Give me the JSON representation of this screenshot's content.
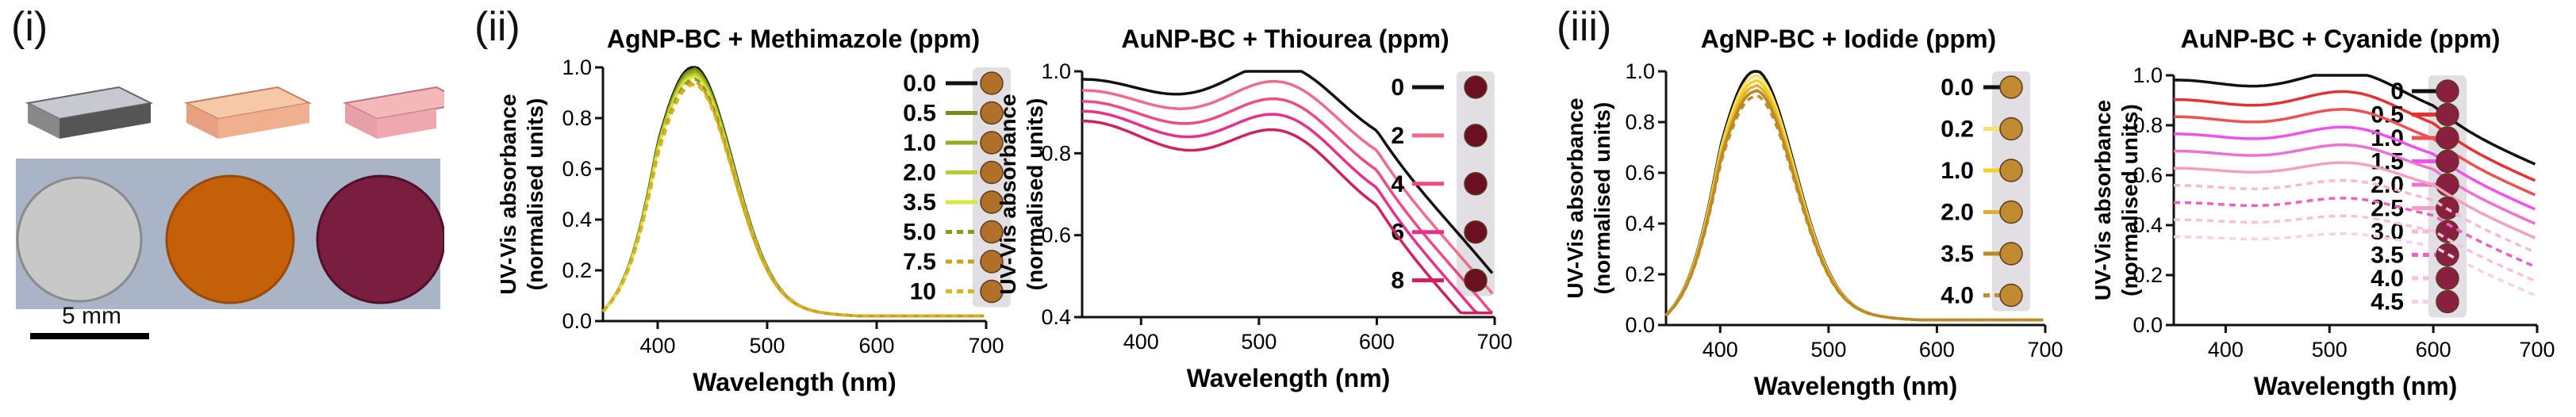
{
  "panel_labels": {
    "i": "(i)",
    "ii": "(ii)",
    "iii": "(iii)"
  },
  "photo": {
    "scale_label": "5 mm",
    "film_colors": [
      "#c8c8c8",
      "#c5600a",
      "#7a1e40"
    ],
    "background": "#a9b4c6"
  },
  "chart_data": [
    {
      "type": "line",
      "title": "AgNP-BC + Methimazole (ppm)",
      "xlabel": "Wavelength (nm)",
      "ylabel": [
        "UV-Vis absorbance",
        "(normalised units)"
      ],
      "xlim": [
        350,
        700
      ],
      "ylim": [
        0.0,
        1.0
      ],
      "xticks": [
        "400",
        "500",
        "600",
        "700"
      ],
      "yticks": [
        "0.0",
        "0.2",
        "0.4",
        "0.6",
        "0.8",
        "1.0"
      ],
      "profile": "ag",
      "series": [
        {
          "name": "0.0",
          "peak": 1.0,
          "color": "#111111",
          "dash": false
        },
        {
          "name": "0.5",
          "peak": 0.99,
          "color": "#7a8a1a",
          "dash": false
        },
        {
          "name": "1.0",
          "peak": 0.98,
          "color": "#9aaa20",
          "dash": false
        },
        {
          "name": "2.0",
          "peak": 0.97,
          "color": "#b8cc30",
          "dash": false
        },
        {
          "name": "3.5",
          "peak": 0.96,
          "color": "#d8e840",
          "dash": false
        },
        {
          "name": "5.0",
          "peak": 0.95,
          "color": "#8a9a20",
          "dash": true
        },
        {
          "name": "7.5",
          "peak": 0.94,
          "color": "#c8a020",
          "dash": true
        },
        {
          "name": "10",
          "peak": 0.93,
          "color": "#e0b020",
          "dash": true
        }
      ],
      "well_color": "#b07028"
    },
    {
      "type": "line",
      "title": "AuNP-BC + Thiourea (ppm)",
      "xlabel": "Wavelength (nm)",
      "ylabel": [
        "UV-Vis absorbance",
        "(normalised units)"
      ],
      "xlim": [
        350,
        700
      ],
      "ylim": [
        0.4,
        1.0
      ],
      "xticks": [
        "400",
        "500",
        "600",
        "700"
      ],
      "yticks": [
        "0.4",
        "0.6",
        "0.8",
        "1.0"
      ],
      "profile": "au",
      "series": [
        {
          "name": "0",
          "peak": 1.0,
          "color": "#111111",
          "dash": false
        },
        {
          "name": "2",
          "peak": 0.955,
          "color": "#f06a8a",
          "dash": false
        },
        {
          "name": "4",
          "peak": 0.91,
          "color": "#f04a80",
          "dash": false
        },
        {
          "name": "6",
          "peak": 0.87,
          "color": "#e8308a",
          "dash": false
        },
        {
          "name": "8",
          "peak": 0.83,
          "color": "#d02060",
          "dash": false
        }
      ],
      "well_color": "#6a1020"
    },
    {
      "type": "line",
      "title": "AgNP-BC + Iodide (ppm)",
      "xlabel": "Wavelength (nm)",
      "ylabel": [
        "UV-Vis absorbance",
        "(normalised units)"
      ],
      "xlim": [
        350,
        700
      ],
      "ylim": [
        0.0,
        1.0
      ],
      "xticks": [
        "400",
        "500",
        "600",
        "700"
      ],
      "yticks": [
        "0.0",
        "0.2",
        "0.4",
        "0.6",
        "0.8",
        "1.0"
      ],
      "profile": "ag",
      "series": [
        {
          "name": "0.0",
          "peak": 1.0,
          "color": "#111111",
          "dash": false
        },
        {
          "name": "0.2",
          "peak": 0.98,
          "color": "#f5e070",
          "dash": false
        },
        {
          "name": "1.0",
          "peak": 0.96,
          "color": "#f0d020",
          "dash": false
        },
        {
          "name": "2.0",
          "peak": 0.94,
          "color": "#e0b030",
          "dash": false
        },
        {
          "name": "3.5",
          "peak": 0.92,
          "color": "#b88a20",
          "dash": false
        },
        {
          "name": "4.0",
          "peak": 0.9,
          "color": "#c08a30",
          "dash": true
        }
      ],
      "well_color": "#c08a30"
    },
    {
      "type": "line",
      "title": "AuNP-BC + Cyanide (ppm)",
      "xlabel": "Wavelength (nm)",
      "ylabel": [
        "UV-Vis absorbance",
        "(normalised units)"
      ],
      "xlim": [
        350,
        700
      ],
      "ylim": [
        0.0,
        1.0
      ],
      "xticks": [
        "400",
        "500",
        "600",
        "700"
      ],
      "yticks": [
        "0.0",
        "0.2",
        "0.4",
        "0.6",
        "0.8",
        "1.0"
      ],
      "profile": "cn",
      "series": [
        {
          "name": "0",
          "peak": 1.0,
          "color": "#111111",
          "dash": false
        },
        {
          "name": "0.5",
          "peak": 0.92,
          "color": "#e83030",
          "dash": false
        },
        {
          "name": "1.0",
          "peak": 0.85,
          "color": "#f05050",
          "dash": false
        },
        {
          "name": "1.5",
          "peak": 0.78,
          "color": "#f050f0",
          "dash": false
        },
        {
          "name": "2.0",
          "peak": 0.71,
          "color": "#f070d0",
          "dash": false
        },
        {
          "name": "2.5",
          "peak": 0.64,
          "color": "#f5a0c0",
          "dash": false
        },
        {
          "name": "3.0",
          "peak": 0.57,
          "color": "#f8b8d8",
          "dash": true
        },
        {
          "name": "3.5",
          "peak": 0.5,
          "color": "#f060c0",
          "dash": true
        },
        {
          "name": "4.0",
          "peak": 0.43,
          "color": "#f8c0e0",
          "dash": true
        },
        {
          "name": "4.5",
          "peak": 0.36,
          "color": "#f8d0e8",
          "dash": true
        }
      ],
      "well_color": "#8a2040"
    }
  ]
}
